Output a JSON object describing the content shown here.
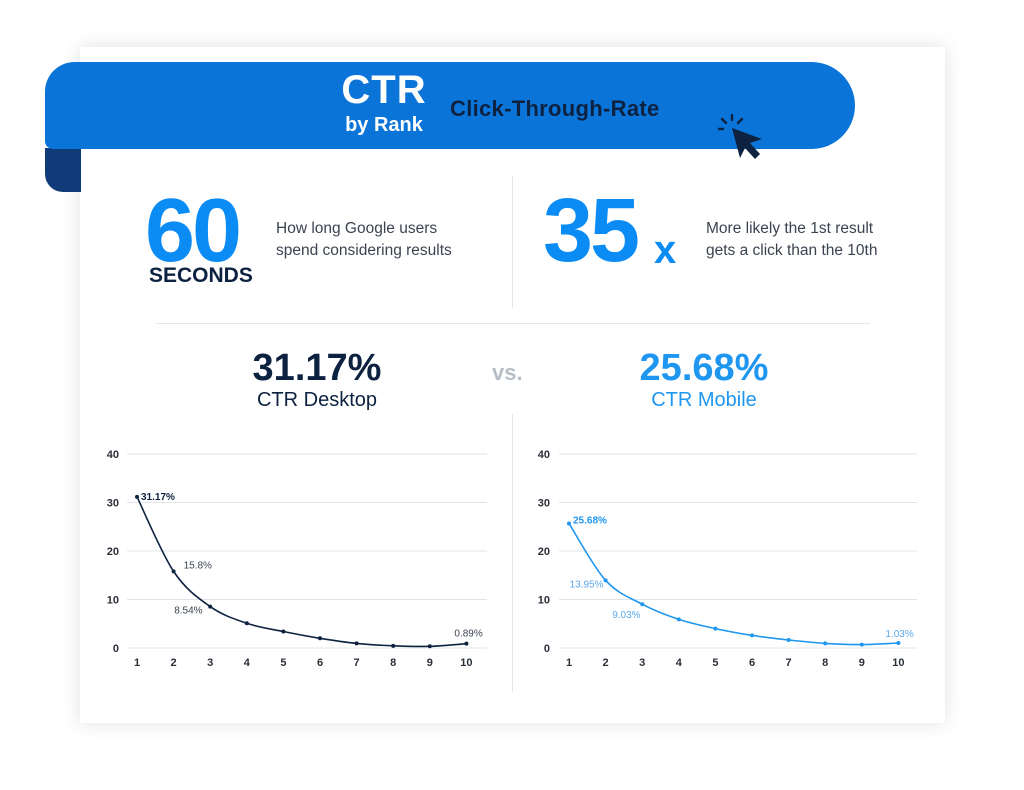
{
  "header": {
    "title_big": "CTR",
    "title_small": "by Rank",
    "title_side": "Click-Through-Rate",
    "accent_color": "#0b74d8",
    "dark_color": "#0d2240",
    "icon": "cursor-click-icon"
  },
  "stats": {
    "left": {
      "number": "60",
      "unit": "SECONDS",
      "line1": "How long Google users",
      "line2": "spend considering results"
    },
    "right": {
      "number": "35",
      "suffix": "x",
      "line1": "More likely the 1st result",
      "line2": "gets a click than the 10th"
    }
  },
  "comparison": {
    "desktop_value": "31.17%",
    "desktop_label": "CTR Desktop",
    "vs_label": "vs.",
    "mobile_value": "25.68%",
    "mobile_label": "CTR Mobile"
  },
  "chart_data": [
    {
      "type": "line",
      "x": [
        1,
        2,
        3,
        4,
        5,
        6,
        7,
        8,
        9,
        10
      ],
      "series": [
        {
          "values": [
            31.17,
            15.8,
            8.54,
            5.1,
            3.4,
            2.0,
            0.95,
            0.45,
            0.35,
            0.89
          ],
          "color": "#0d2240"
        }
      ],
      "data_labels": [
        {
          "index": 0,
          "text": "31.17%"
        },
        {
          "index": 1,
          "text": "15.8%"
        },
        {
          "index": 2,
          "text": "8.54%"
        },
        {
          "index": 9,
          "text": "0.89%"
        }
      ],
      "xticks": [
        "1",
        "2",
        "3",
        "4",
        "5",
        "6",
        "7",
        "8",
        "9",
        "10"
      ],
      "yticks": [
        "0",
        "10",
        "20",
        "30",
        "40"
      ],
      "ylim": [
        0,
        40
      ],
      "grid": true
    },
    {
      "type": "line",
      "x": [
        1,
        2,
        3,
        4,
        5,
        6,
        7,
        8,
        9,
        10
      ],
      "series": [
        {
          "values": [
            25.68,
            13.95,
            9.03,
            5.9,
            4.0,
            2.6,
            1.65,
            0.95,
            0.7,
            1.03
          ],
          "color": "#1f96f0"
        }
      ],
      "data_labels": [
        {
          "index": 0,
          "text": "25.68%"
        },
        {
          "index": 1,
          "text": "13.95%"
        },
        {
          "index": 2,
          "text": "9.03%"
        },
        {
          "index": 9,
          "text": "1.03%"
        }
      ],
      "xticks": [
        "1",
        "2",
        "3",
        "4",
        "5",
        "6",
        "7",
        "8",
        "9",
        "10"
      ],
      "yticks": [
        "0",
        "10",
        "20",
        "30",
        "40"
      ],
      "ylim": [
        0,
        40
      ],
      "grid": true
    }
  ]
}
